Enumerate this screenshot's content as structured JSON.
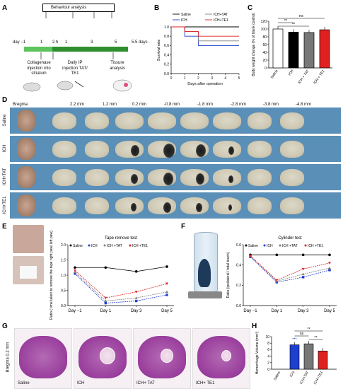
{
  "panels": {
    "a": "A",
    "b": "B",
    "c": "C",
    "d": "D",
    "e": "E",
    "f": "F",
    "g": "G",
    "h": "H"
  },
  "panel_a": {
    "header": "Behaviour analysis",
    "day_labels": [
      "day −1",
      "1",
      "2 h",
      "1",
      "3",
      "5",
      "5.5 days"
    ],
    "steps": [
      "Collagenase injection into striatum",
      "Daily IP injection TAT/ TE1",
      "Tissure analysis"
    ]
  },
  "panel_d": {
    "bregma_label": "Bregma",
    "mm_labels": [
      "2.2 mm",
      "1.2 mm",
      "0.2 mm",
      "-0.8 mm",
      "-1.8 mm",
      "-2.8 mm",
      "-3.8 mm",
      "-4.8 mm"
    ],
    "rows": [
      "Saline",
      "ICH",
      "ICH+TAT",
      "ICH+TE1"
    ]
  },
  "panel_g": {
    "side_label": "Bregma 0.2 mm",
    "labels": [
      "Saline",
      "ICH",
      "ICH+ TAT",
      "ICH+ TE1"
    ]
  },
  "colors": {
    "saline": "#000000",
    "ich": "#1f3fcf",
    "tat": "#7f7f7f",
    "te1": "#e02020"
  },
  "chart_data": [
    {
      "id": "B",
      "type": "line",
      "xlabel": "Days after operation",
      "ylabel": "Survival rate",
      "xlim": [
        0,
        5
      ],
      "ylim": [
        0,
        1.0
      ],
      "xticks": [
        0,
        1,
        2,
        3,
        4,
        5
      ],
      "yticks": [
        0,
        0.2,
        0.4,
        0.6,
        0.8,
        1.0
      ],
      "series": [
        {
          "name": "Saline",
          "x": [
            0,
            5
          ],
          "y": [
            1.0,
            1.0
          ]
        },
        {
          "name": "ICH",
          "x": [
            0,
            1,
            1,
            2,
            2,
            5
          ],
          "y": [
            1.0,
            1.0,
            0.8,
            0.8,
            0.6,
            0.6
          ]
        },
        {
          "name": "ICH+TAT",
          "x": [
            0,
            1,
            1,
            2,
            2,
            5
          ],
          "y": [
            1.0,
            1.0,
            0.9,
            0.9,
            0.7,
            0.7
          ]
        },
        {
          "name": "ICH+TE1",
          "x": [
            0,
            1,
            1,
            2,
            2,
            5
          ],
          "y": [
            1.0,
            1.0,
            0.9,
            0.9,
            0.8,
            0.8
          ]
        }
      ]
    },
    {
      "id": "C",
      "type": "bar",
      "ylabel": "Body weight change (% of blank control)",
      "ylim": [
        0,
        120
      ],
      "yticks": [
        0,
        20,
        40,
        60,
        80,
        100,
        120
      ],
      "categories": [
        "Saline",
        "ICH",
        "ICH + TAT",
        "ICH + TE1"
      ],
      "values": [
        100,
        92,
        91,
        98
      ],
      "annotations": [
        "ns",
        "**",
        "**"
      ]
    },
    {
      "id": "E",
      "type": "line",
      "title": "Tape remove test",
      "ylabel": "Ratio ( time taken to remove the tape right paw/ left paw)",
      "categories": [
        "Day −1",
        "Day 1",
        "Day 3",
        "Day 5"
      ],
      "ylim": [
        0,
        2.0
      ],
      "yticks": [
        0,
        0.5,
        1.0,
        1.5,
        2.0
      ],
      "series": [
        {
          "name": "Saline",
          "values": [
            1.25,
            1.25,
            1.12,
            1.28
          ]
        },
        {
          "name": "ICH",
          "values": [
            1.05,
            0.08,
            0.15,
            0.35
          ]
        },
        {
          "name": "ICH +TAT",
          "values": [
            1.1,
            0.15,
            0.25,
            0.45
          ]
        },
        {
          "name": "ICH +TE1",
          "values": [
            1.15,
            0.25,
            0.45,
            0.72
          ]
        }
      ]
    },
    {
      "id": "F",
      "type": "line",
      "title": "Cylinder test",
      "ylabel": "Ratio (ipsilateral / total touch)",
      "categories": [
        "Day −1",
        "Day 1",
        "Day 3",
        "Day 5"
      ],
      "ylim": [
        0,
        0.6
      ],
      "yticks": [
        0.0,
        0.2,
        0.4,
        0.6
      ],
      "series": [
        {
          "name": "Saline",
          "values": [
            0.5,
            0.5,
            0.5,
            0.5
          ]
        },
        {
          "name": "ICH",
          "values": [
            0.48,
            0.23,
            0.28,
            0.35
          ]
        },
        {
          "name": "ICH +TAT",
          "values": [
            0.49,
            0.24,
            0.31,
            0.37
          ]
        },
        {
          "name": "ICH +TE1",
          "values": [
            0.49,
            0.25,
            0.36,
            0.42
          ]
        }
      ]
    },
    {
      "id": "H",
      "type": "bar",
      "ylabel": "Hemorrhage Volume (mm³)",
      "ylim": [
        0,
        10
      ],
      "yticks": [
        0,
        2,
        4,
        6,
        8,
        10
      ],
      "categories": [
        "Saline",
        "ICH",
        "ICH+TAT",
        "ICH+TE1"
      ],
      "values": [
        0,
        7.5,
        7.8,
        5.6
      ],
      "annotations": [
        "ns",
        "**",
        "**",
        "***"
      ]
    }
  ]
}
